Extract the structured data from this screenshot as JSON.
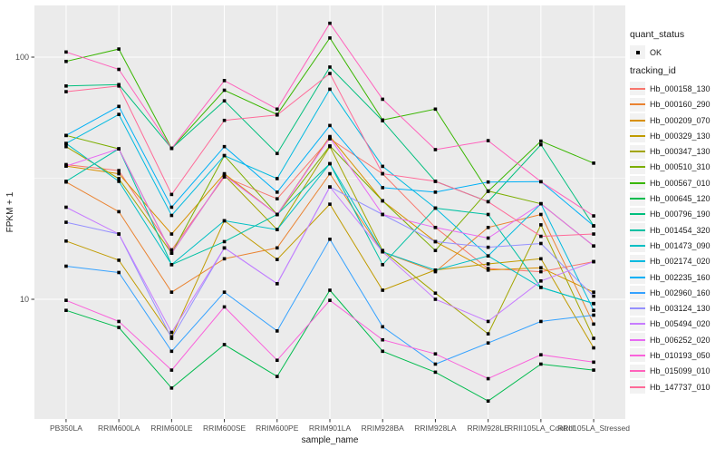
{
  "figure": {
    "ylabel": "FPKM + 1",
    "xlabel": "sample_name",
    "legend": {
      "quant_status_title": "quant_status",
      "quant_status_items": [
        "OK"
      ],
      "tracking_title": "tracking_id"
    },
    "colors": {
      "panel_bg": "#EBEBEB",
      "grid": "#FFFFFF",
      "axis_text": "#4D4D4D",
      "axis_title": "#1a1a1a",
      "point": "#000000",
      "legend_key_bg": "#F2F2F2"
    }
  },
  "chart_data": {
    "type": "line",
    "title": "",
    "xlabel": "sample_name",
    "ylabel": "FPKM + 1",
    "y_scale": "log10",
    "ylim": [
      3.16,
      160
    ],
    "yticks": [
      10,
      100
    ],
    "grid": "on",
    "legend_position": "right",
    "x_categories": [
      "PB350LA",
      "RRIM600LA",
      "RRIM600LE",
      "RRIM600SE",
      "RRIM600PE",
      "RRIM901LA",
      "RRIM928BA",
      "RRIM928LA",
      "RRIM928LE",
      "RRII105LA_Control",
      "RRII105LA_Stressed"
    ],
    "series": [
      {
        "tracking_id": "Hb_000158_130",
        "color": "#F8766D",
        "values": [
          36,
          34,
          16,
          32,
          26,
          46,
          33,
          19.8,
          13.4,
          13,
          14.3
        ]
      },
      {
        "tracking_id": "Hb_000160_290",
        "color": "#EA8331",
        "values": [
          30.5,
          23,
          10.7,
          14.7,
          16.3,
          33,
          15.7,
          13,
          19.8,
          22.4,
          7.9
        ]
      },
      {
        "tracking_id": "Hb_000209_070",
        "color": "#D89000",
        "values": [
          35.5,
          33,
          18.6,
          33,
          22.4,
          47,
          25.5,
          17.3,
          13.2,
          13.5,
          10.7
        ]
      },
      {
        "tracking_id": "Hb_000329_130",
        "color": "#C09B00",
        "values": [
          17.4,
          14.5,
          7,
          21.1,
          14.6,
          24.7,
          10.9,
          13.2,
          14,
          14.7,
          6.3
        ]
      },
      {
        "tracking_id": "Hb_000347_130",
        "color": "#A3A500",
        "values": [
          42.7,
          31.5,
          15.5,
          32.5,
          19.4,
          42.7,
          15.9,
          10.6,
          7.2,
          20.3,
          6.9
        ]
      },
      {
        "tracking_id": "Hb_000510_310",
        "color": "#7CAE00",
        "values": [
          47.5,
          41.8,
          15.5,
          39.2,
          22.4,
          43,
          25.5,
          15.9,
          28,
          24.8,
          16.6
        ]
      },
      {
        "tracking_id": "Hb_000567_010",
        "color": "#39B600",
        "values": [
          96,
          108,
          42,
          73,
          58,
          120,
          55,
          61,
          27.9,
          45,
          36.5
        ]
      },
      {
        "tracking_id": "Hb_000645_120",
        "color": "#00BB4E",
        "values": [
          9,
          7.65,
          4.3,
          6.5,
          4.8,
          10.9,
          6.1,
          5,
          3.8,
          5.4,
          5.1
        ]
      },
      {
        "tracking_id": "Hb_000796_190",
        "color": "#00BF7D",
        "values": [
          76,
          77,
          42,
          66,
          40,
          91,
          54.6,
          30.7,
          25.3,
          43.5,
          20.1
        ]
      },
      {
        "tracking_id": "Hb_001454_320",
        "color": "#00C1A3",
        "values": [
          30.7,
          41.8,
          13.9,
          17.3,
          22.4,
          36.3,
          13.9,
          23.8,
          22.4,
          11.2,
          9.6
        ]
      },
      {
        "tracking_id": "Hb_001473_090",
        "color": "#00BFC4",
        "values": [
          44,
          30.7,
          13.9,
          21.1,
          19.4,
          36.3,
          15.7,
          13.2,
          15.1,
          11.2,
          9.6
        ]
      },
      {
        "tracking_id": "Hb_002174_020",
        "color": "#00BAE0",
        "values": [
          44,
          58,
          22.2,
          39.2,
          31.5,
          73.7,
          35.4,
          23.8,
          15.1,
          24.8,
          9
        ]
      },
      {
        "tracking_id": "Hb_002235_160",
        "color": "#00B0F6",
        "values": [
          47.5,
          62.6,
          24,
          42.7,
          27.7,
          52.2,
          28.9,
          27.7,
          30.5,
          30.6,
          20.1
        ]
      },
      {
        "tracking_id": "Hb_002960_160",
        "color": "#35A2FF",
        "values": [
          13.7,
          12.9,
          6.1,
          10.7,
          7.4,
          17.7,
          7.7,
          5.4,
          6.6,
          8.1,
          8.6
        ]
      },
      {
        "tracking_id": "Hb_003124_130",
        "color": "#9590FF",
        "values": [
          20.8,
          18.6,
          6.9,
          16.3,
          11.6,
          29.1,
          22.4,
          17.3,
          16.4,
          17,
          10.3
        ]
      },
      {
        "tracking_id": "Hb_005494_020",
        "color": "#C77CFF",
        "values": [
          24,
          18.6,
          7.3,
          16.3,
          11.6,
          29.1,
          15.7,
          10,
          8.1,
          11.9,
          14.3
        ]
      },
      {
        "tracking_id": "Hb_006252_020",
        "color": "#E76BF3",
        "values": [
          35.5,
          41.8,
          15.5,
          32.5,
          22.4,
          46.5,
          22.4,
          19.8,
          17.9,
          24.8,
          16.6
        ]
      },
      {
        "tracking_id": "Hb_010193_050",
        "color": "#FA62DB",
        "values": [
          9.9,
          8.1,
          5.1,
          9.3,
          5.6,
          9.9,
          6.8,
          5.95,
          4.7,
          5.9,
          5.5
        ]
      },
      {
        "tracking_id": "Hb_015099_010",
        "color": "#FF62BC",
        "values": [
          105,
          89,
          42,
          80,
          61,
          138,
          67,
          41.5,
          45.2,
          30.6,
          22.1
        ]
      },
      {
        "tracking_id": "Hb_147737_010",
        "color": "#FF6A98",
        "values": [
          72,
          76,
          27.1,
          54.8,
          57.7,
          85.6,
          33,
          30.7,
          25.3,
          18.2,
          18.6
        ]
      }
    ]
  }
}
